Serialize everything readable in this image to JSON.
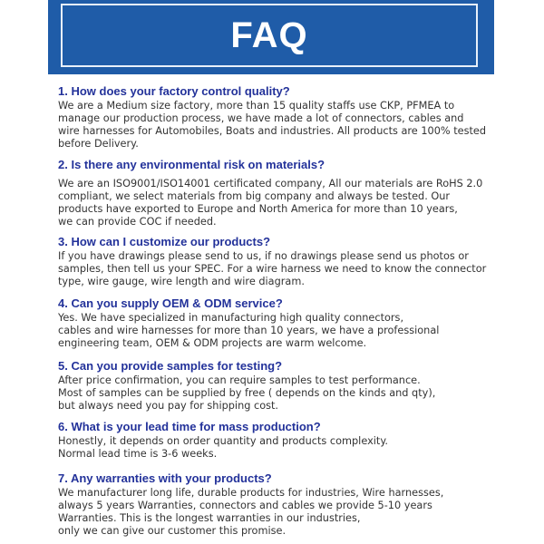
{
  "header": {
    "title": "FAQ",
    "color": "#1f5ca8"
  },
  "faq": [
    {
      "question": "1. How does your factory control quality?",
      "answer": [
        "We are a Medium size factory, more than 15 quality staffs use CKP, PFMEA to",
        "manage our production process, we have made a lot of connectors, cables and",
        "wire harnesses for Automobiles, Boats and industries. All products are 100% tested",
        "before Delivery."
      ]
    },
    {
      "question": "2. Is there any environmental risk on materials?",
      "answer": [
        "We are an ISO9001/ISO14001 certificated company, All our materials are RoHS 2.0",
        "compliant, we select materials from big company and always be tested. Our",
        "products have exported to Europe and North America for more than 10 years,",
        "we can provide COC if needed."
      ]
    },
    {
      "question": "3. How can I customize our products?",
      "answer": [
        "If you have drawings please send to us, if no drawings please send us photos or",
        "samples, then tell us your SPEC. For a wire harness we need to know the connector",
        "type, wire gauge, wire length and wire diagram."
      ]
    },
    {
      "question": "4. Can you supply OEM & ODM service?",
      "answer": [
        "Yes. We have specialized in manufacturing high quality connectors,",
        "cables and wire harnesses for more than 10 years, we have a professional",
        "engineering team, OEM & ODM projects are warm welcome."
      ]
    },
    {
      "question": "5. Can you provide samples for testing?",
      "answer": [
        "After price confirmation, you can require samples to test performance.",
        "Most of samples can be supplied by free ( depends on the kinds and qty),",
        "but always need you pay for shipping cost."
      ]
    },
    {
      "question": "6. What is your lead time for mass production?",
      "answer": [
        "Honestly, it depends on order quantity and products complexity.",
        "Normal lead time is 3-6 weeks."
      ]
    },
    {
      "question": "7. Any warranties with your products?",
      "answer": [
        "We manufacturer long life, durable products for industries, Wire harnesses,",
        "always 5 years Warranties, connectors and cables we provide 5-10 years",
        "Warranties. This is the longest warranties in our industries,",
        "only we can give our customer this promise."
      ]
    }
  ]
}
